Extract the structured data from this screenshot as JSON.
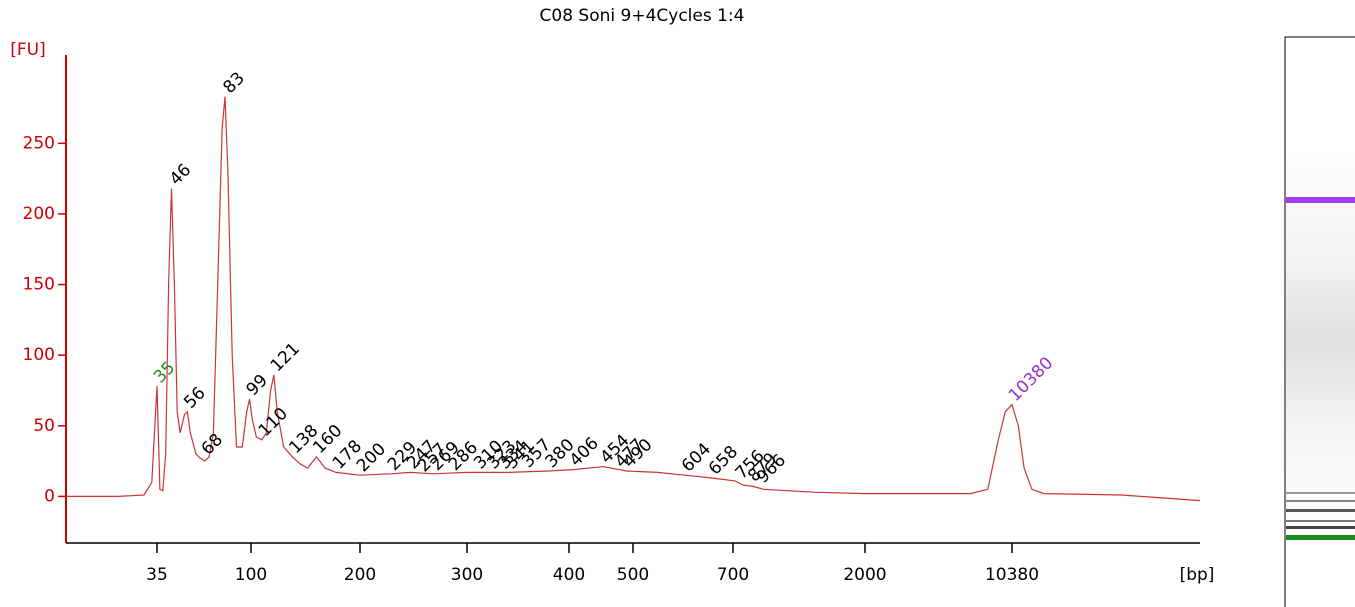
{
  "chart_data": {
    "type": "line",
    "title": "C08 Soni 9+4Cycles 1:4",
    "y_label": "[FU]",
    "x_label": "[bp]",
    "color": "#cc3333",
    "axis_color": "#cc0000",
    "x": [
      0,
      20,
      30,
      33,
      35,
      37,
      39,
      41,
      43,
      45,
      47,
      49,
      51,
      54,
      56,
      58,
      62,
      65,
      68,
      71,
      74,
      77,
      80,
      82,
      84,
      87,
      90,
      94,
      97,
      99,
      101,
      105,
      110,
      114,
      118,
      121,
      124,
      130,
      138,
      145,
      152,
      160,
      168,
      178,
      200,
      229,
      247,
      269,
      300,
      341,
      380,
      406,
      454,
      490,
      550,
      604,
      658,
      720,
      800,
      900,
      1000,
      1500,
      2000,
      4000,
      8000,
      9000,
      9600,
      10000,
      10380,
      10700,
      11000,
      11400,
      12000,
      16000,
      20000
    ],
    "values": [
      0,
      0,
      1,
      10,
      78,
      5,
      4,
      30,
      150,
      218,
      150,
      60,
      45,
      58,
      60,
      45,
      30,
      27,
      25,
      28,
      45,
      150,
      260,
      283,
      230,
      100,
      35,
      35,
      60,
      69,
      55,
      42,
      40,
      45,
      75,
      86,
      60,
      35,
      28,
      23,
      20,
      28,
      20,
      17,
      15,
      16,
      17,
      16,
      17,
      17,
      18,
      19,
      21,
      18,
      17,
      15,
      13,
      11,
      8,
      7,
      5,
      3,
      2,
      2,
      2,
      5,
      40,
      60,
      65,
      50,
      20,
      5,
      2,
      1,
      -3
    ],
    "peak_labels": [
      35,
      46,
      56,
      68,
      83,
      99,
      110,
      121,
      138,
      160,
      178,
      200,
      229,
      247,
      257,
      269,
      286,
      310,
      323,
      334,
      341,
      357,
      380,
      406,
      454,
      477,
      490,
      604,
      658,
      756,
      879,
      966,
      10380
    ],
    "peak_heights": [
      78,
      218,
      60,
      27,
      283,
      69,
      40,
      86,
      28,
      28,
      17,
      15,
      16,
      17,
      15,
      16,
      16,
      17,
      17,
      17,
      17,
      18,
      18,
      19,
      21,
      18,
      18,
      15,
      13,
      10,
      8,
      7,
      65
    ],
    "lower_marker_color": "#228b22",
    "upper_marker_color": "#9932cc",
    "xlim": [
      0,
      20000
    ],
    "xticks": [
      35,
      100,
      200,
      300,
      400,
      500,
      700,
      2000,
      10380
    ],
    "ylim": [
      -33,
      309
    ],
    "yticks": [
      0,
      50,
      100,
      150,
      200,
      250
    ]
  }
}
